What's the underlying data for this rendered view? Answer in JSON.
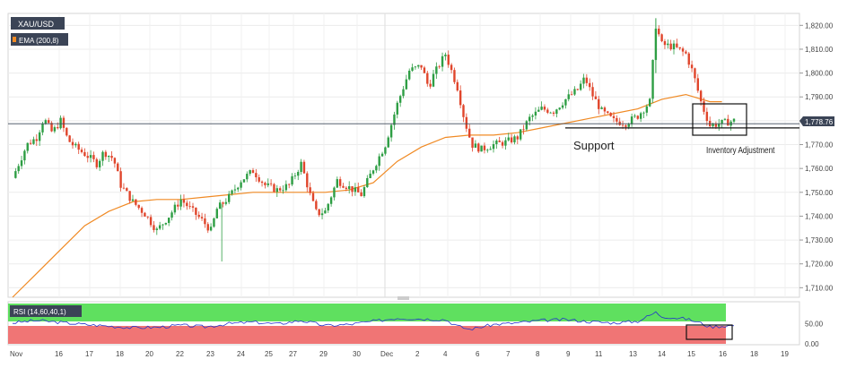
{
  "chart_data": [
    {
      "type": "candlestick",
      "title": "XAU/USD",
      "indicator_label": "EMA (200,8)",
      "last_price_label": "1,778.76",
      "last_price": 1778.76,
      "ylim": [
        1706,
        1825
      ],
      "yticks": [
        "1,710.00",
        "1,720.00",
        "1,730.00",
        "1,740.00",
        "1,750.00",
        "1,760.00",
        "1,770.00",
        "1,780.00",
        "1,790.00",
        "1,800.00",
        "1,810.00",
        "1,820.00"
      ],
      "ytick_values": [
        1710,
        1720,
        1730,
        1740,
        1750,
        1760,
        1770,
        1780,
        1790,
        1800,
        1810,
        1820
      ],
      "xticks": [
        "Nov",
        "16",
        "17",
        "18",
        "20",
        "22",
        "23",
        "24",
        "25",
        "27",
        "29",
        "30",
        "Dec",
        "2",
        "4",
        "6",
        "7",
        "8",
        "9",
        "11",
        "13",
        "14",
        "15",
        "16",
        "18",
        "19"
      ],
      "grid": true,
      "colors": {
        "up": "#2e9e44",
        "down": "#e0452b",
        "ema": "#f08a24",
        "price_line": "#3f4a5a",
        "label_bg": "#3b4456"
      },
      "price_path": [
        [
          0,
          1756
        ],
        [
          1.2,
          1770
        ],
        [
          2,
          1773
        ],
        [
          2.6,
          1781
        ],
        [
          3.3,
          1775
        ],
        [
          4,
          1780
        ],
        [
          4.6,
          1772
        ],
        [
          5.2,
          1769
        ],
        [
          6.3,
          1765
        ],
        [
          7,
          1762
        ],
        [
          7.6,
          1767
        ],
        [
          8.4,
          1764
        ],
        [
          9,
          1753
        ],
        [
          10,
          1746
        ],
        [
          11,
          1741
        ],
        [
          12,
          1734
        ],
        [
          13,
          1740
        ],
        [
          14,
          1747
        ],
        [
          15,
          1742
        ],
        [
          15.8,
          1738
        ],
        [
          16.5,
          1734
        ],
        [
          17,
          1743
        ],
        [
          18,
          1748
        ],
        [
          19,
          1755
        ],
        [
          20,
          1759
        ],
        [
          21,
          1753
        ],
        [
          22,
          1751
        ],
        [
          23,
          1753
        ],
        [
          24,
          1762
        ],
        [
          24.8,
          1748
        ],
        [
          25.3,
          1741
        ],
        [
          26,
          1742
        ],
        [
          27,
          1755
        ],
        [
          28,
          1752
        ],
        [
          29,
          1749
        ],
        [
          30,
          1760
        ],
        [
          31,
          1770
        ],
        [
          32,
          1787
        ],
        [
          33,
          1801
        ],
        [
          34,
          1803
        ],
        [
          34.6,
          1794
        ],
        [
          35,
          1799
        ],
        [
          36,
          1808
        ],
        [
          37,
          1794
        ],
        [
          37.6,
          1780
        ],
        [
          38.2,
          1770
        ],
        [
          39,
          1768
        ],
        [
          40,
          1770
        ],
        [
          41,
          1771
        ],
        [
          42,
          1773
        ],
        [
          43,
          1781
        ],
        [
          44,
          1785
        ],
        [
          45,
          1784
        ],
        [
          46,
          1789
        ],
        [
          47,
          1793
        ],
        [
          47.6,
          1798
        ],
        [
          48.2,
          1791
        ],
        [
          49,
          1784
        ],
        [
          50,
          1780
        ],
        [
          51,
          1779
        ],
        [
          52,
          1782
        ],
        [
          53,
          1788
        ],
        [
          53.5,
          1820
        ],
        [
          54,
          1812
        ],
        [
          55,
          1811
        ],
        [
          56,
          1808
        ],
        [
          56.6,
          1800
        ],
        [
          57.3,
          1787
        ],
        [
          58,
          1778
        ],
        [
          59,
          1779
        ],
        [
          60,
          1780
        ]
      ],
      "ema_path": [
        [
          0,
          1706
        ],
        [
          2,
          1716
        ],
        [
          4,
          1726
        ],
        [
          6,
          1736
        ],
        [
          8,
          1742
        ],
        [
          10,
          1746
        ],
        [
          12,
          1747
        ],
        [
          14,
          1747
        ],
        [
          16,
          1748
        ],
        [
          18,
          1749
        ],
        [
          20,
          1750
        ],
        [
          22,
          1750
        ],
        [
          24,
          1750
        ],
        [
          26,
          1750
        ],
        [
          28,
          1751
        ],
        [
          30,
          1754
        ],
        [
          32,
          1763
        ],
        [
          34,
          1769
        ],
        [
          36,
          1773
        ],
        [
          38,
          1774
        ],
        [
          40,
          1774
        ],
        [
          42,
          1775
        ],
        [
          44,
          1777
        ],
        [
          46,
          1779
        ],
        [
          48,
          1781
        ],
        [
          50,
          1783
        ],
        [
          52,
          1785
        ],
        [
          54,
          1789
        ],
        [
          56,
          1791
        ],
        [
          58,
          1788
        ],
        [
          59,
          1788
        ]
      ],
      "annotations": [
        {
          "text": "Support",
          "price": 1777
        },
        {
          "text": "Inventory Adjustment",
          "price": 1777
        }
      ]
    },
    {
      "type": "line",
      "title": "RSI (14,60,40,1)",
      "ylim": [
        0,
        100
      ],
      "yticks": [
        "0.00",
        "50.00"
      ],
      "ytick_values": [
        0,
        50
      ],
      "overbought": 60,
      "oversold": 40,
      "colors": {
        "line": "#2233cc",
        "upper_zone": "#5fe05f",
        "lower_zone": "#f07575"
      },
      "values": [
        [
          0,
          52
        ],
        [
          2,
          58
        ],
        [
          4,
          53
        ],
        [
          6,
          48
        ],
        [
          8,
          44
        ],
        [
          10,
          40
        ],
        [
          12,
          41
        ],
        [
          14,
          46
        ],
        [
          16,
          42
        ],
        [
          18,
          50
        ],
        [
          20,
          54
        ],
        [
          22,
          49
        ],
        [
          24,
          58
        ],
        [
          26,
          45
        ],
        [
          28,
          48
        ],
        [
          30,
          56
        ],
        [
          32,
          64
        ],
        [
          34,
          62
        ],
        [
          36,
          60
        ],
        [
          37,
          44
        ],
        [
          38,
          36
        ],
        [
          40,
          48
        ],
        [
          42,
          52
        ],
        [
          44,
          58
        ],
        [
          46,
          60
        ],
        [
          48,
          55
        ],
        [
          50,
          52
        ],
        [
          52,
          56
        ],
        [
          53.5,
          78
        ],
        [
          54,
          68
        ],
        [
          56,
          62
        ],
        [
          57,
          54
        ],
        [
          58,
          42
        ],
        [
          59,
          44
        ],
        [
          60,
          46
        ]
      ]
    }
  ]
}
